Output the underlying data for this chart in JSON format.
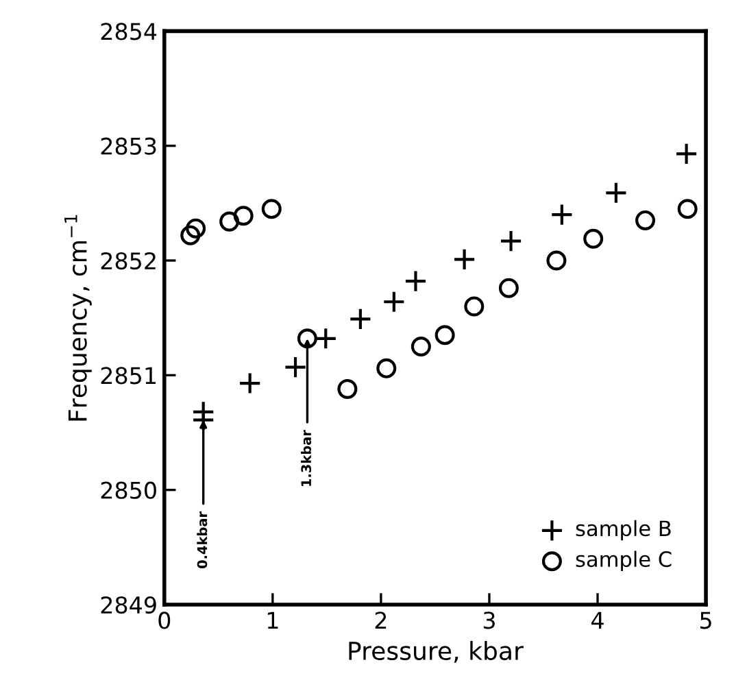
{
  "chart_data": {
    "type": "scatter",
    "xlabel": "Pressure, kbar",
    "ylabel": "Frequency, cm$^{−1}$",
    "xlim": [
      0,
      5
    ],
    "ylim": [
      2849,
      2854
    ],
    "xticks": [
      0,
      1,
      2,
      3,
      4,
      5
    ],
    "yticks": [
      2849,
      2850,
      2851,
      2852,
      2853,
      2854
    ],
    "grid": false,
    "legend": "bottom right",
    "series": [
      {
        "name": "sample B",
        "color": "#000000",
        "marker": "cross",
        "x": [
          0.36,
          0.36,
          0.79,
          1.21,
          1.49,
          1.81,
          2.12,
          2.32,
          2.77,
          3.2,
          3.67,
          4.17,
          4.82
        ],
        "values": [
          2850.68,
          2850.61,
          2850.93,
          2851.07,
          2851.32,
          2851.49,
          2851.64,
          2851.82,
          2852.01,
          2852.17,
          2852.4,
          2852.59,
          2852.93
        ]
      },
      {
        "name": "sample C",
        "color": "#000000",
        "marker": "circle",
        "x": [
          0.24,
          0.29,
          0.6,
          0.73,
          0.99,
          1.32,
          1.69,
          2.05,
          2.37,
          2.59,
          2.86,
          3.18,
          3.62,
          3.96,
          4.44,
          4.83
        ],
        "values": [
          2852.22,
          2852.28,
          2852.34,
          2852.39,
          2852.45,
          2851.32,
          2850.88,
          2851.06,
          2851.25,
          2851.35,
          2851.6,
          2851.76,
          2852.0,
          2852.19,
          2852.35,
          2852.45
        ]
      }
    ],
    "annotations": [
      {
        "text": "0.4kbar",
        "x": 0.36,
        "y": 2850.61
      },
      {
        "text": "1.3kbar",
        "x": 1.32,
        "y": 2851.32
      }
    ]
  }
}
